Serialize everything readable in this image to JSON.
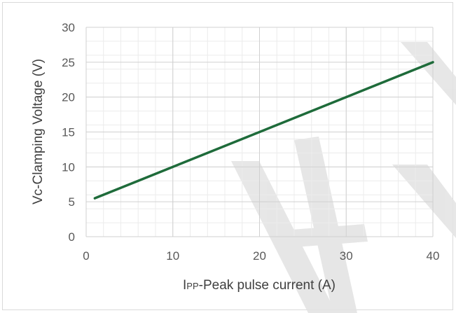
{
  "chart_data": {
    "type": "line",
    "title": "",
    "xlabel_prefix": "I",
    "xlabel_subscript": "PP",
    "xlabel_rest": "-Peak pulse current (A)",
    "ylabel": "Vc-Clamping Voltage (V)",
    "xlim": [
      0,
      40
    ],
    "ylim": [
      0,
      30
    ],
    "x_ticks": [
      0,
      10,
      20,
      30,
      40
    ],
    "y_ticks": [
      0,
      5,
      10,
      15,
      20,
      25,
      30
    ],
    "grid": true,
    "series": [
      {
        "color": "#1e6b3a",
        "x": [
          1,
          40
        ],
        "y": [
          5.5,
          25
        ]
      }
    ]
  }
}
